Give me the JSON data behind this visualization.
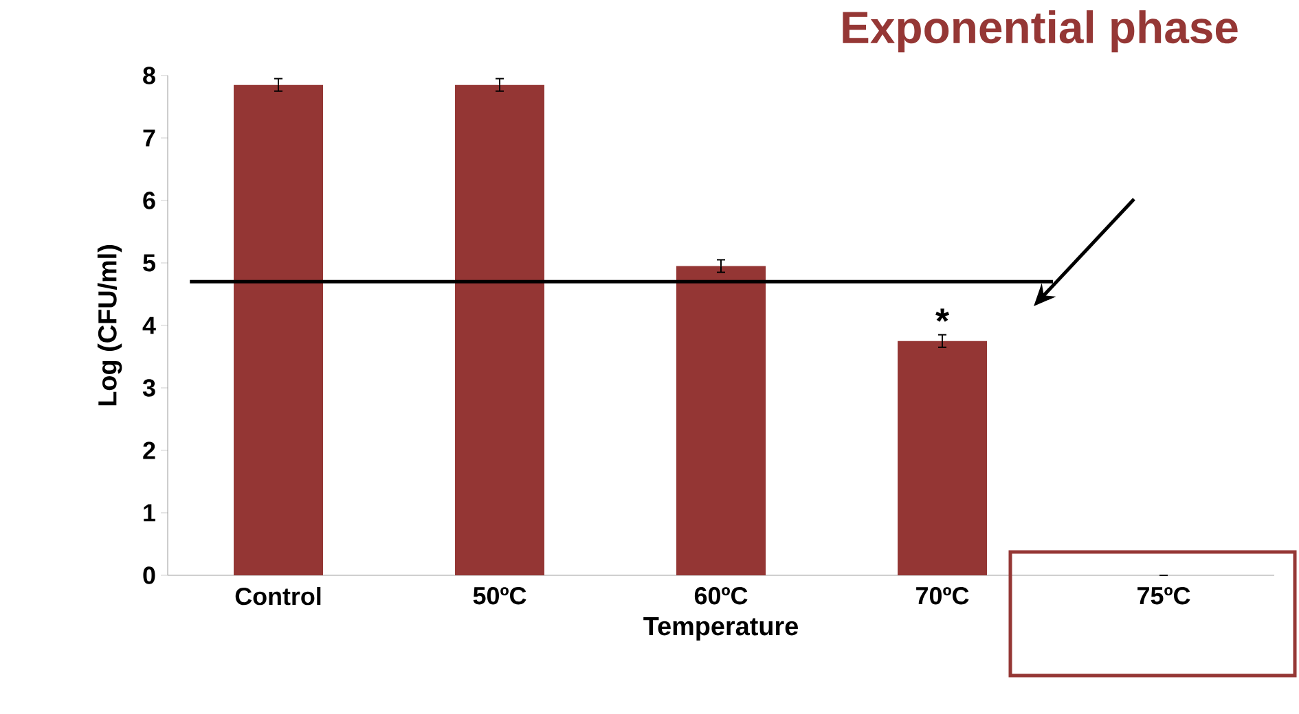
{
  "chart_data": {
    "type": "bar",
    "title": "Exponential phase",
    "xlabel": "Temperature",
    "ylabel": "Log (CFU/ml)",
    "categories": [
      "Control",
      "50ºC",
      "60ºC",
      "70ºC",
      "75ºC"
    ],
    "values": [
      7.85,
      7.85,
      4.95,
      3.75,
      0
    ],
    "errors": [
      0.1,
      0.1,
      0.1,
      0.1,
      null
    ],
    "color": "#943634",
    "ylim": [
      0,
      8
    ],
    "yticks": [
      0,
      1,
      2,
      3,
      4,
      5,
      6,
      7,
      8
    ],
    "ref_lines": [
      {
        "axis": "y",
        "value": 4.7,
        "color": "#000000",
        "line_style": "solid"
      }
    ],
    "annotations": [
      {
        "text": "*",
        "x": "70ºC",
        "y": 3.85
      }
    ],
    "grid": false
  }
}
